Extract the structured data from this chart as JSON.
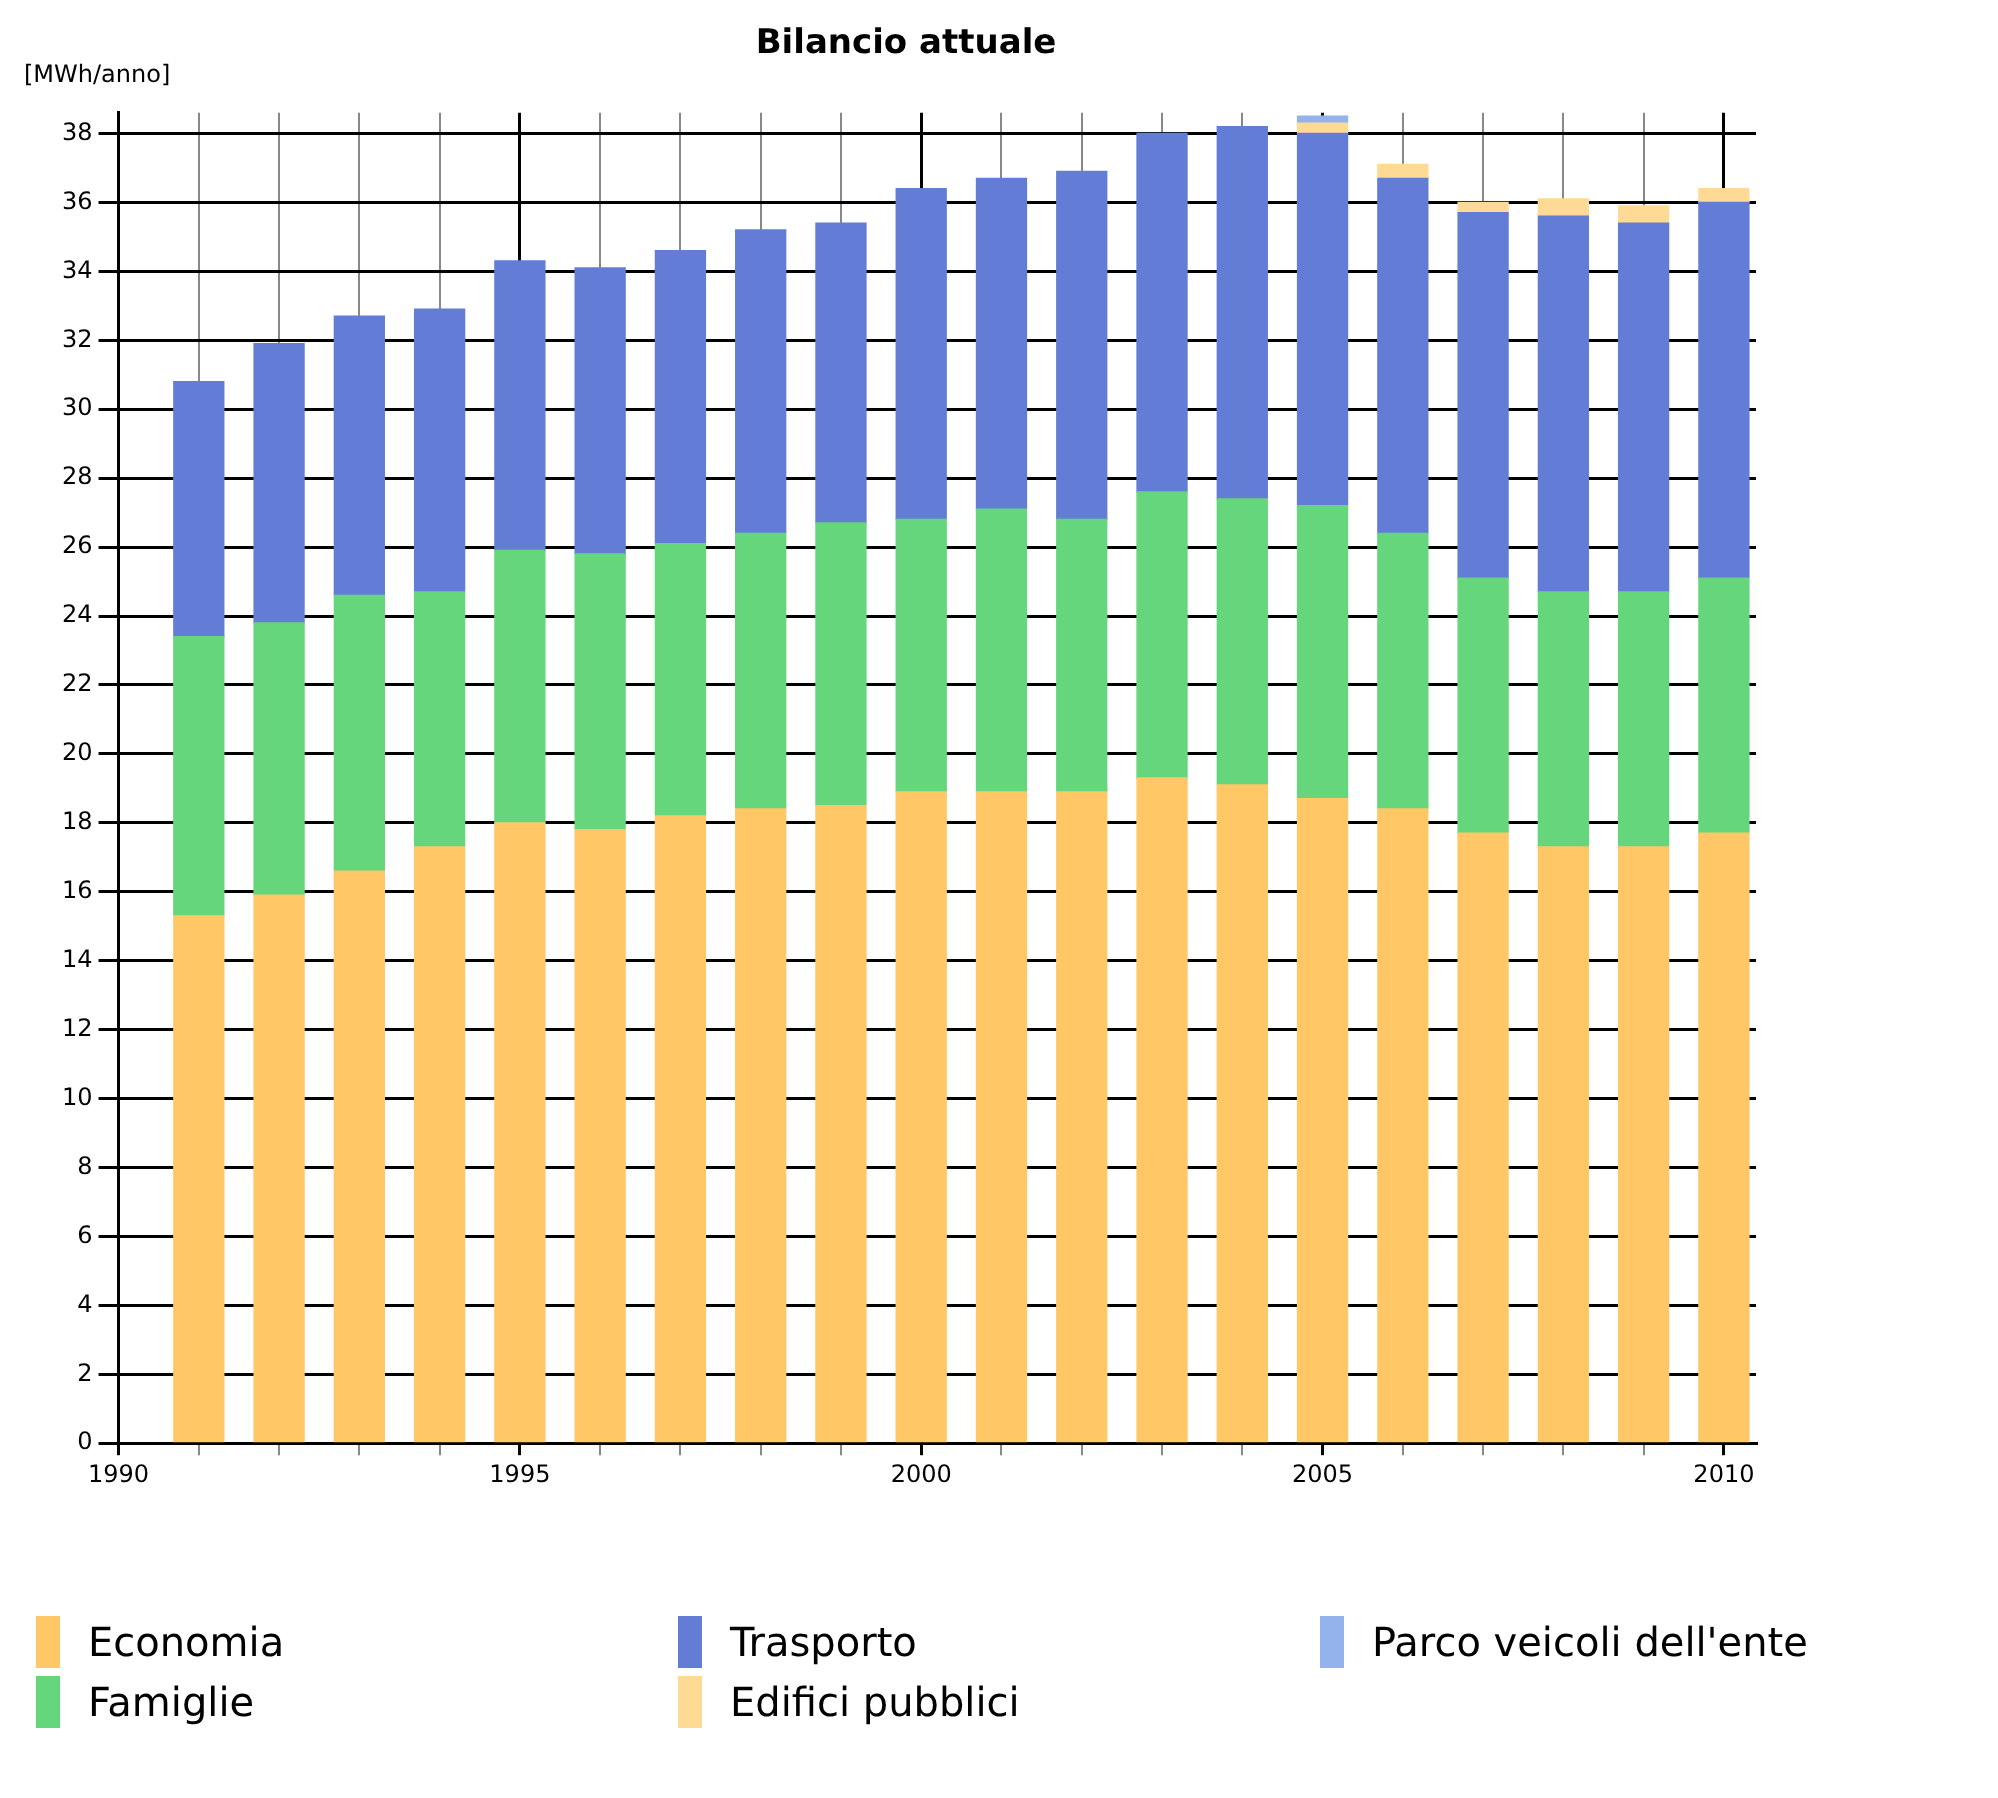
{
  "chart_data": {
    "type": "bar",
    "title": "Bilancio attuale",
    "ylabel": "[MWh/anno]",
    "stacked": true,
    "legend": "bottom",
    "grid": true,
    "x": [
      1991,
      1992,
      1993,
      1994,
      1995,
      1996,
      1997,
      1998,
      1999,
      2000,
      2001,
      2002,
      2003,
      2004,
      2005,
      2006,
      2007,
      2008,
      2009,
      2010
    ],
    "xlim": [
      1990,
      2010.4
    ],
    "xticks": [
      1990,
      {
        "value": 1991,
        "label": null
      },
      {
        "value": 1992,
        "label": null
      },
      {
        "value": 1993,
        "label": null
      },
      {
        "value": 1994,
        "label": null
      },
      1995,
      {
        "value": 1996,
        "label": null
      },
      {
        "value": 1997,
        "label": null
      },
      {
        "value": 1998,
        "label": null
      },
      {
        "value": 1999,
        "label": null
      },
      2000,
      {
        "value": 2001,
        "label": null
      },
      {
        "value": 2002,
        "label": null
      },
      {
        "value": 2003,
        "label": null
      },
      {
        "value": 2004,
        "label": null
      },
      2005,
      {
        "value": 2006,
        "label": null
      },
      {
        "value": 2007,
        "label": null
      },
      {
        "value": 2008,
        "label": null
      },
      {
        "value": 2009,
        "label": null
      },
      2010
    ],
    "ylim": [
      0,
      38.6
    ],
    "yticks": [
      0,
      2,
      4,
      6,
      8,
      10,
      12,
      14,
      16,
      18,
      20,
      22,
      24,
      26,
      28,
      30,
      32,
      34,
      36,
      38
    ],
    "series": [
      {
        "name": "Economia",
        "color": "#ffc766",
        "values": [
          15.3,
          15.9,
          16.6,
          17.3,
          18.0,
          17.8,
          18.2,
          18.4,
          18.5,
          18.9,
          18.9,
          18.9,
          19.3,
          19.1,
          18.7,
          18.4,
          17.7,
          17.3,
          17.3,
          17.7
        ]
      },
      {
        "name": "Famiglie",
        "color": "#66d67d",
        "values": [
          8.1,
          7.9,
          8.0,
          7.4,
          7.9,
          8.0,
          7.9,
          8.0,
          8.2,
          7.9,
          8.2,
          7.9,
          8.3,
          8.3,
          8.5,
          8.0,
          7.4,
          7.4,
          7.4,
          7.4
        ]
      },
      {
        "name": "Trasporto",
        "color": "#637dd6",
        "values": [
          7.4,
          8.1,
          8.1,
          8.2,
          8.4,
          8.3,
          8.5,
          8.8,
          8.7,
          9.6,
          9.6,
          10.1,
          10.4,
          10.8,
          10.8,
          10.3,
          10.6,
          10.9,
          10.7,
          10.9
        ]
      },
      {
        "name": "Edifici pubblici",
        "color": "#ffda94",
        "values": [
          null,
          null,
          null,
          null,
          null,
          null,
          null,
          null,
          null,
          null,
          null,
          null,
          null,
          null,
          0.3,
          0.4,
          0.3,
          0.5,
          0.5,
          0.4
        ]
      },
      {
        "name": "Parco veicoli dell'ente",
        "color": "#94b2ec",
        "values": [
          null,
          null,
          null,
          null,
          null,
          null,
          null,
          null,
          null,
          null,
          null,
          null,
          null,
          null,
          0.2,
          null,
          null,
          null,
          null,
          null
        ]
      }
    ]
  }
}
